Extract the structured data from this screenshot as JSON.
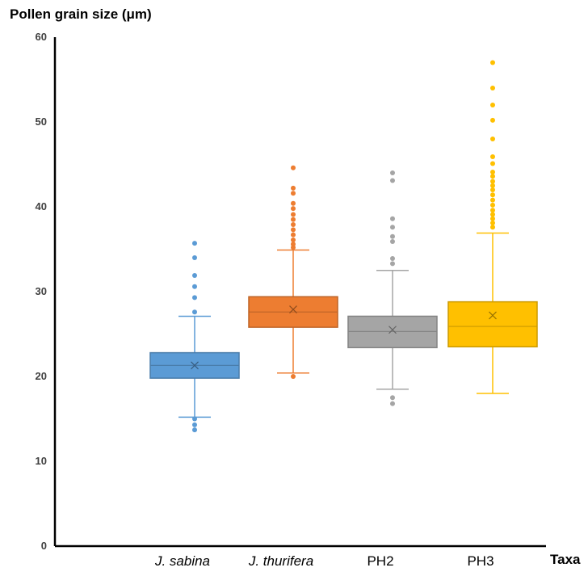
{
  "chart_data": {
    "type": "box",
    "ylabel": "Pollen grain size (μm)",
    "xlabel": "Taxa",
    "ylim": [
      0,
      60
    ],
    "yticks": [
      0,
      10,
      20,
      30,
      40,
      50,
      60
    ],
    "grid": false,
    "legend": "none",
    "series": [
      {
        "category": "J. sabina",
        "italic": true,
        "color": "#5B9BD5",
        "min": 15.2,
        "q1": 19.8,
        "median": 21.3,
        "q3": 22.8,
        "max": 27.1,
        "mean": 21.3,
        "outliers": [
          35.7,
          34.0,
          31.9,
          30.6,
          29.3,
          27.6,
          15.0,
          14.3,
          13.7
        ]
      },
      {
        "category": "J. thurifera",
        "italic": true,
        "color": "#ED7D31",
        "min": 20.4,
        "q1": 25.8,
        "median": 27.6,
        "q3": 29.4,
        "max": 34.9,
        "mean": 27.9,
        "outliers": [
          44.6,
          42.2,
          41.6,
          40.4,
          39.8,
          39.1,
          38.5,
          37.9,
          37.3,
          36.7,
          36.1,
          35.6,
          35.2,
          20.0
        ]
      },
      {
        "category": "PH2",
        "italic": false,
        "color": "#A5A5A5",
        "min": 18.5,
        "q1": 23.4,
        "median": 25.3,
        "q3": 27.1,
        "max": 32.5,
        "mean": 25.5,
        "outliers": [
          44.0,
          43.1,
          38.6,
          37.6,
          36.5,
          35.9,
          33.9,
          33.3,
          17.5,
          16.8
        ]
      },
      {
        "category": "PH3",
        "italic": false,
        "color": "#FFC000",
        "min": 18.0,
        "q1": 23.5,
        "median": 25.9,
        "q3": 28.8,
        "max": 36.9,
        "mean": 27.2,
        "outliers": [
          57.0,
          54.0,
          52.0,
          50.2,
          48.0,
          45.9,
          45.1,
          44.1,
          43.6,
          43.0,
          42.5,
          42.0,
          41.4,
          40.8,
          40.2,
          39.6,
          39.1,
          38.6,
          38.1,
          37.6
        ]
      }
    ]
  }
}
